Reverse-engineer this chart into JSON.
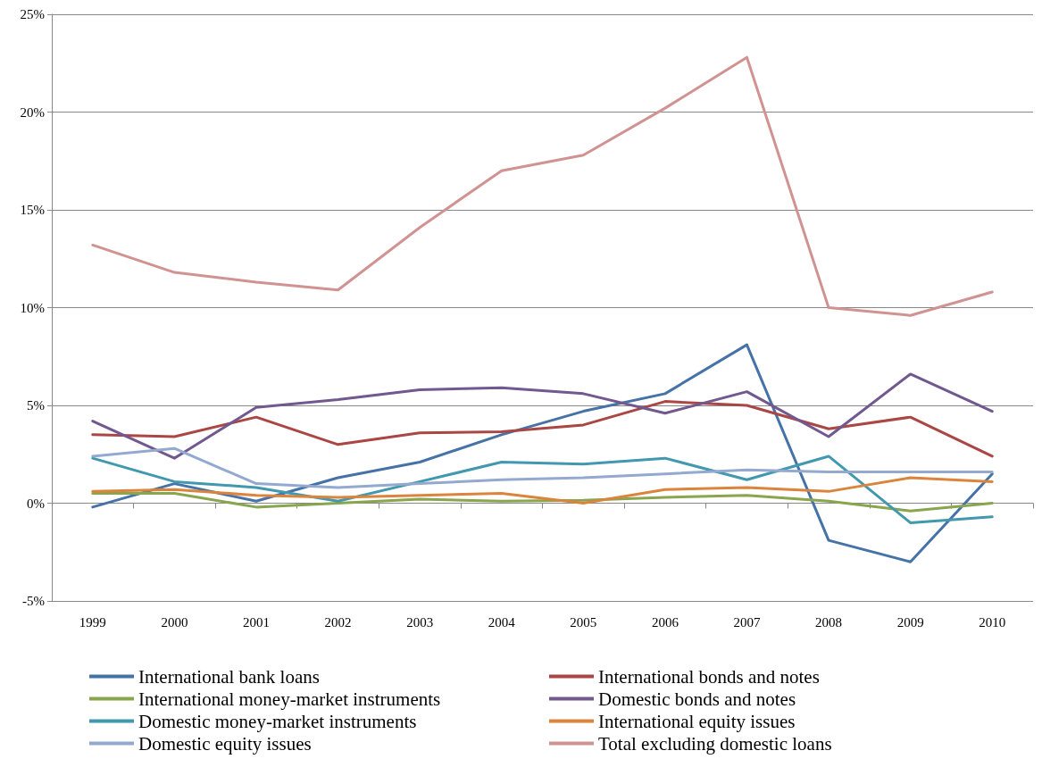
{
  "chart_data": {
    "type": "line",
    "categories": [
      "1999",
      "2000",
      "2001",
      "2002",
      "2003",
      "2004",
      "2005",
      "2006",
      "2007",
      "2008",
      "2009",
      "2010"
    ],
    "series": [
      {
        "name": "International bank loans",
        "color": "#4572a7",
        "values": [
          -0.2,
          1.0,
          0.1,
          1.3,
          2.1,
          3.5,
          4.7,
          5.6,
          8.1,
          -1.9,
          -3.0,
          1.5
        ]
      },
      {
        "name": "International bonds and notes",
        "color": "#aa4643",
        "values": [
          3.5,
          3.4,
          4.4,
          3.0,
          3.6,
          3.65,
          4.0,
          5.2,
          5.0,
          3.8,
          4.4,
          2.4
        ]
      },
      {
        "name": "International money-market instruments",
        "color": "#89a54e",
        "values": [
          0.5,
          0.5,
          -0.2,
          0.0,
          0.2,
          0.1,
          0.15,
          0.3,
          0.4,
          0.1,
          -0.4,
          0.0
        ]
      },
      {
        "name": "Domestic bonds and notes",
        "color": "#71588f",
        "values": [
          4.2,
          2.3,
          4.9,
          5.3,
          5.8,
          5.9,
          5.6,
          4.6,
          5.7,
          3.4,
          6.6,
          4.7
        ]
      },
      {
        "name": "Domestic money-market instruments",
        "color": "#4198af",
        "values": [
          2.3,
          1.1,
          0.8,
          0.1,
          1.1,
          2.1,
          2.0,
          2.3,
          1.2,
          2.4,
          -1.0,
          -0.7
        ]
      },
      {
        "name": "International equity issues",
        "color": "#db843d",
        "values": [
          0.6,
          0.7,
          0.4,
          0.3,
          0.4,
          0.5,
          0.0,
          0.7,
          0.8,
          0.6,
          1.3,
          1.1
        ]
      },
      {
        "name": "Domestic equity issues",
        "color": "#93a9cf",
        "values": [
          2.4,
          2.8,
          1.0,
          0.8,
          1.0,
          1.2,
          1.3,
          1.5,
          1.7,
          1.6,
          1.6,
          1.6
        ]
      },
      {
        "name": "Total excluding domestic loans",
        "color": "#d19392",
        "values": [
          13.2,
          11.8,
          11.3,
          10.9,
          14.1,
          17.0,
          17.8,
          20.2,
          22.8,
          10.0,
          9.6,
          10.8
        ]
      }
    ],
    "ylim": [
      -5,
      25
    ],
    "yticks": [
      {
        "value": -5,
        "label": "-5%"
      },
      {
        "value": 0,
        "label": "0%"
      },
      {
        "value": 5,
        "label": "5%"
      },
      {
        "value": 10,
        "label": "10%"
      },
      {
        "value": 15,
        "label": "15%"
      },
      {
        "value": 20,
        "label": "20%"
      },
      {
        "value": 25,
        "label": "25%"
      }
    ],
    "grid": "y",
    "legend": "bottom",
    "marker": "none",
    "line_style": "solid"
  }
}
